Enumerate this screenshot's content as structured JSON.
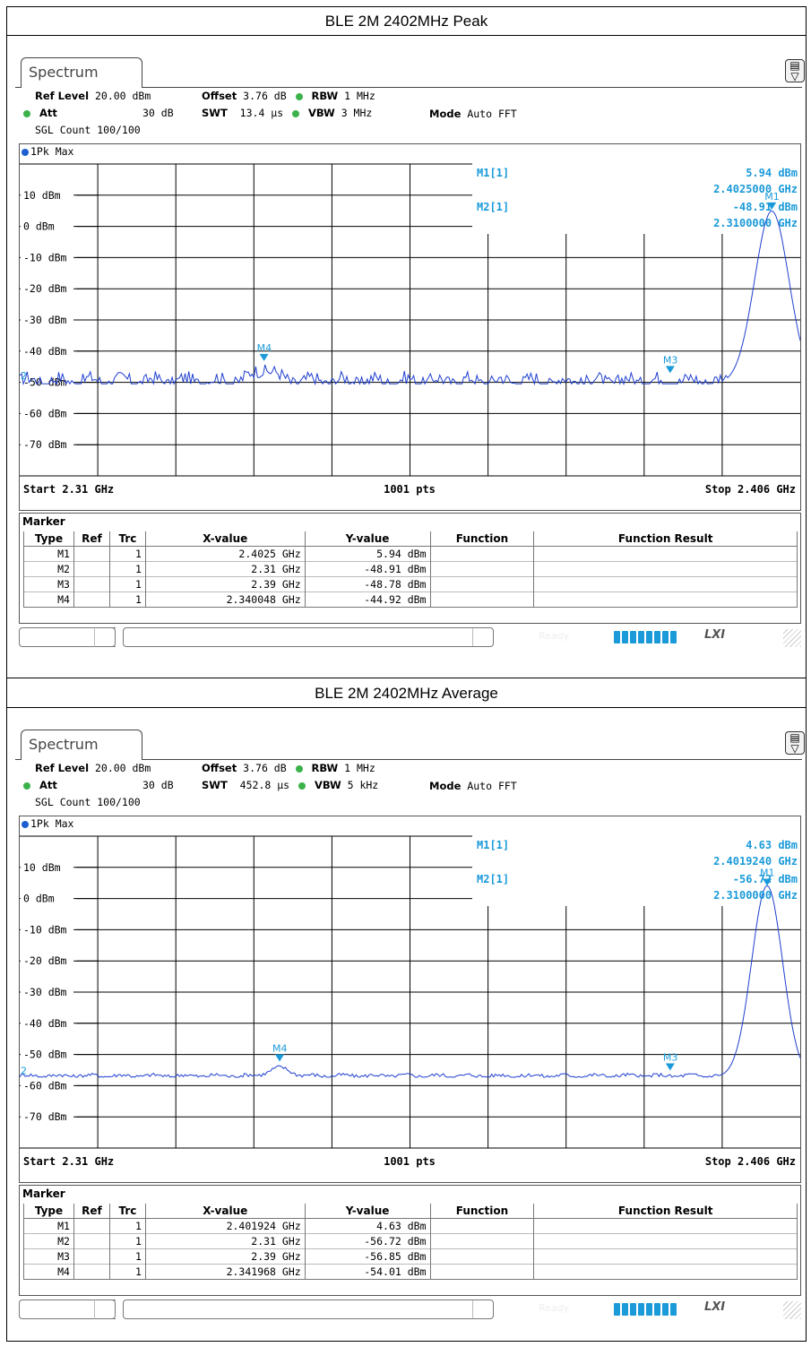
{
  "panels": [
    {
      "title": "BLE 2M 2402MHz Peak",
      "tab": "Spectrum",
      "ref_level_label": "Ref Level",
      "ref_level": "20.00 dBm",
      "offset_label": "Offset",
      "offset": "3.76 dB",
      "rbw_label": "RBW",
      "rbw": "1 MHz",
      "att_label": "Att",
      "att": "30 dB",
      "swt_label": "SWT",
      "swt": "13.4 µs",
      "vbw_label": "VBW",
      "vbw": "3 MHz",
      "mode_label": "Mode",
      "mode": "Auto FFT",
      "sgl": "SGL Count 100/100",
      "trace": "1Pk Max",
      "m1_label": "M1[1]",
      "m1_level": "5.94 dBm",
      "m1_freq": "2.4025000 GHz",
      "m2_label": "M2[1]",
      "m2_level": "-48.91 dBm",
      "m2_freq": "2.3100000 GHz",
      "start": "Start 2.31 GHz",
      "pts": "1001 pts",
      "stop": "Stop 2.406 GHz",
      "y_labels": [
        "10 dBm",
        "0 dBm",
        "-10 dBm",
        "-20 dBm",
        "-30 dBm",
        "-40 dBm",
        "-50 dBm",
        "-60 dBm",
        "-70 dBm"
      ],
      "noise_floor": -49.5,
      "peak_level": 5.94,
      "markers_on_plot": [
        {
          "name": "M1",
          "x": 2.4025,
          "y": 5.94
        },
        {
          "name": "M3",
          "x": 2.39,
          "y": -48.78
        },
        {
          "name": "M4",
          "x": 2.340048,
          "y": -44.92
        }
      ],
      "marker_table_title": "Marker",
      "columns": [
        "Type",
        "Ref",
        "Trc",
        "X-value",
        "Y-value",
        "Function",
        "Function Result"
      ],
      "rows": [
        {
          "type": "M1",
          "ref": "",
          "trc": "1",
          "x": "2.4025 GHz",
          "y": "5.94 dBm"
        },
        {
          "type": "M2",
          "ref": "",
          "trc": "1",
          "x": "2.31 GHz",
          "y": "-48.91 dBm"
        },
        {
          "type": "M3",
          "ref": "",
          "trc": "1",
          "x": "2.39 GHz",
          "y": "-48.78 dBm"
        },
        {
          "type": "M4",
          "ref": "",
          "trc": "1",
          "x": "2.340048 GHz",
          "y": "-44.92 dBm"
        }
      ],
      "status_ready": "Ready"
    },
    {
      "title": "BLE 2M 2402MHz Average",
      "tab": "Spectrum",
      "ref_level_label": "Ref Level",
      "ref_level": "20.00 dBm",
      "offset_label": "Offset",
      "offset": "3.76 dB",
      "rbw_label": "RBW",
      "rbw": "1 MHz",
      "att_label": "Att",
      "att": "30 dB",
      "swt_label": "SWT",
      "swt": "452.8 µs",
      "vbw_label": "VBW",
      "vbw": "5 kHz",
      "mode_label": "Mode",
      "mode": "Auto FFT",
      "sgl": "SGL Count 100/100",
      "trace": "1Pk Max",
      "m1_label": "M1[1]",
      "m1_level": "4.63 dBm",
      "m1_freq": "2.4019240 GHz",
      "m2_label": "M2[1]",
      "m2_level": "-56.72 dBm",
      "m2_freq": "2.3100000 GHz",
      "start": "Start 2.31 GHz",
      "pts": "1001 pts",
      "stop": "Stop 2.406 GHz",
      "y_labels": [
        "10 dBm",
        "0 dBm",
        "-10 dBm",
        "-20 dBm",
        "-30 dBm",
        "-40 dBm",
        "-50 dBm",
        "-60 dBm",
        "-70 dBm"
      ],
      "noise_floor": -56.8,
      "peak_level": 4.63,
      "markers_on_plot": [
        {
          "name": "M1",
          "x": 2.401924,
          "y": 4.63
        },
        {
          "name": "M3",
          "x": 2.39,
          "y": -56.85
        },
        {
          "name": "M4",
          "x": 2.341968,
          "y": -54.01
        }
      ],
      "marker_table_title": "Marker",
      "columns": [
        "Type",
        "Ref",
        "Trc",
        "X-value",
        "Y-value",
        "Function",
        "Function Result"
      ],
      "rows": [
        {
          "type": "M1",
          "ref": "",
          "trc": "1",
          "x": "2.401924 GHz",
          "y": "4.63 dBm"
        },
        {
          "type": "M2",
          "ref": "",
          "trc": "1",
          "x": "2.31 GHz",
          "y": "-56.72 dBm"
        },
        {
          "type": "M3",
          "ref": "",
          "trc": "1",
          "x": "2.39 GHz",
          "y": "-56.85 dBm"
        },
        {
          "type": "M4",
          "ref": "",
          "trc": "1",
          "x": "2.341968 GHz",
          "y": "-54.01 dBm"
        }
      ],
      "status_ready": "Ready"
    }
  ],
  "colors": {
    "trace": "#1f3fcf",
    "marker": "#1a9ad9",
    "grid": "#000000"
  }
}
